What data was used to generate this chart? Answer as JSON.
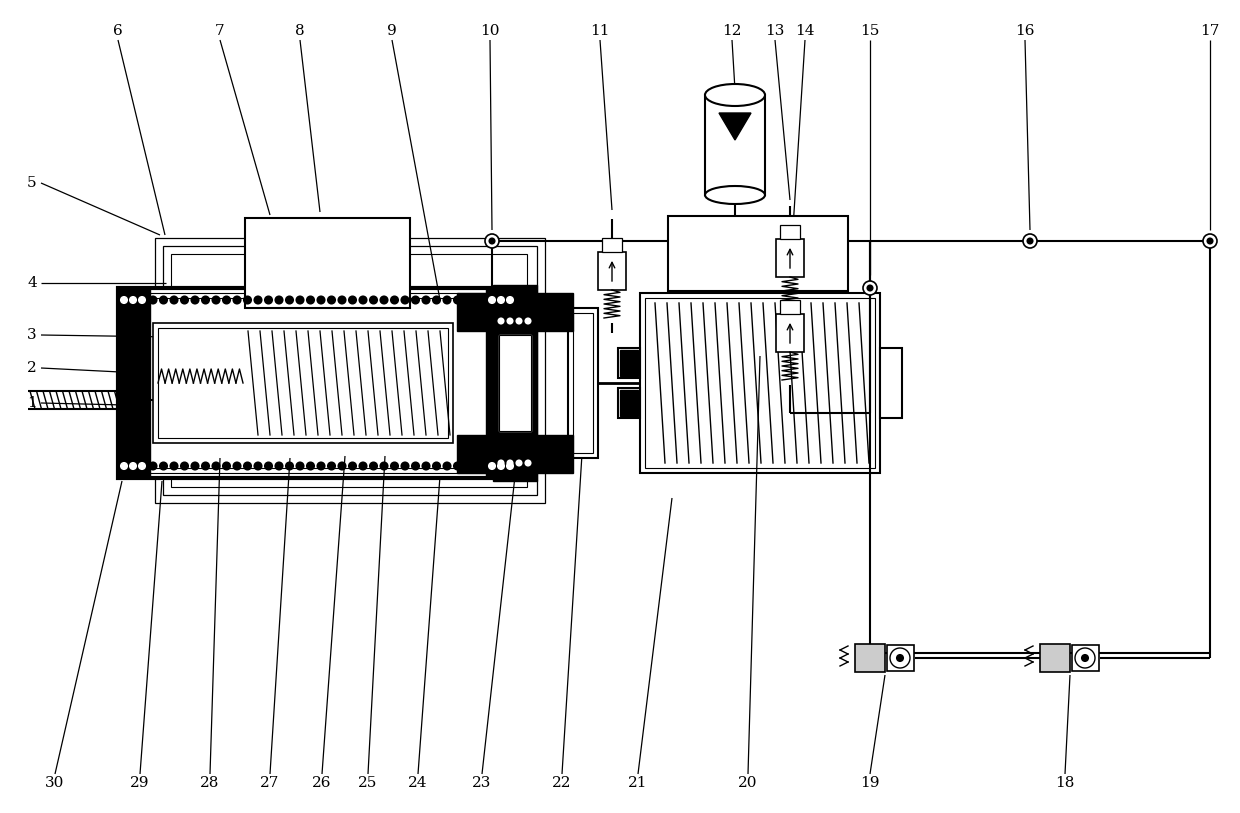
{
  "bg_color": "#ffffff",
  "line_color": "#000000",
  "lw_main": 1.5,
  "lw_thin": 1.0,
  "lw_thick": 3.0,
  "fs_label": 11
}
